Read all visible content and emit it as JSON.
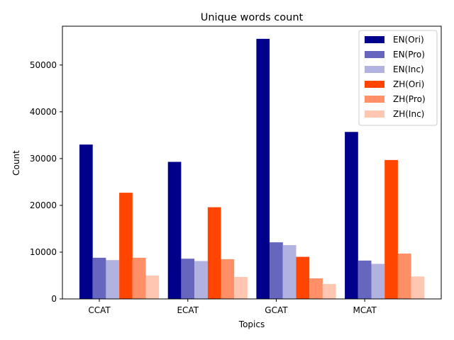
{
  "chart_data": {
    "type": "bar",
    "title": "Unique words count",
    "xlabel": "Topics",
    "ylabel": "Count",
    "categories": [
      "CCAT",
      "ECAT",
      "GCAT",
      "MCAT"
    ],
    "ylim": [
      0,
      58300
    ],
    "yticks": [
      0,
      10000,
      20000,
      30000,
      40000,
      50000
    ],
    "ytick_labels": [
      "0",
      "10000",
      "20000",
      "30000",
      "40000",
      "50000"
    ],
    "legend_position": "top-right",
    "grid": false,
    "series": [
      {
        "name": "EN(Ori)",
        "color": "#00008b",
        "values": [
          33000,
          29300,
          55600,
          35700
        ]
      },
      {
        "name": "EN(Pro)",
        "color": "#6666bf",
        "values": [
          8800,
          8600,
          12100,
          8200
        ]
      },
      {
        "name": "EN(Inc)",
        "color": "#b2b2e1",
        "values": [
          8300,
          8100,
          11500,
          7500
        ]
      },
      {
        "name": "ZH(Ori)",
        "color": "#ff4500",
        "values": [
          22700,
          19600,
          9000,
          29700
        ]
      },
      {
        "name": "ZH(Pro)",
        "color": "#ff8f66",
        "values": [
          8800,
          8500,
          4400,
          9700
        ]
      },
      {
        "name": "ZH(Inc)",
        "color": "#ffc7b2",
        "values": [
          5000,
          4700,
          3200,
          4800
        ]
      }
    ]
  }
}
